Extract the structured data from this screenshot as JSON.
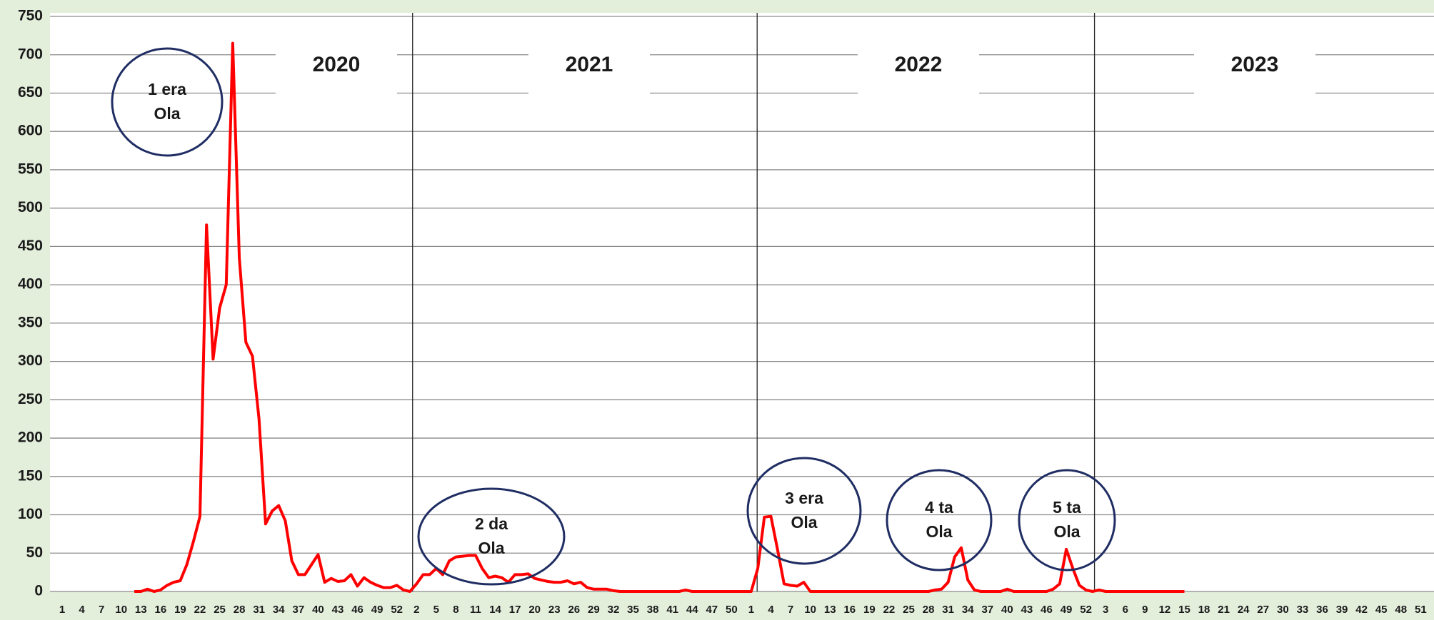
{
  "chart_data": {
    "type": "line",
    "color": "#ff0000",
    "grid": true,
    "ylim": [
      0,
      750
    ],
    "yticks": [
      0,
      50,
      100,
      150,
      200,
      250,
      300,
      350,
      400,
      450,
      500,
      550,
      600,
      650,
      700,
      750
    ],
    "year_labels": [
      "2020",
      "2021",
      "2022",
      "2023"
    ],
    "annotations": [
      {
        "lines": [
          "1 era",
          "Ola"
        ]
      },
      {
        "lines": [
          "2 da",
          "Ola"
        ]
      },
      {
        "lines": [
          "3 era",
          "Ola"
        ]
      },
      {
        "lines": [
          "4 ta",
          "Ola"
        ]
      },
      {
        "lines": [
          "5 ta",
          "Ola"
        ]
      }
    ],
    "categories": [
      "1",
      null,
      null,
      "4",
      null,
      null,
      "7",
      null,
      null,
      "10",
      null,
      null,
      "13",
      null,
      null,
      "16",
      null,
      null,
      "19",
      null,
      null,
      "22",
      null,
      null,
      "25",
      null,
      null,
      "28",
      null,
      null,
      "31",
      null,
      null,
      "34",
      null,
      null,
      "37",
      null,
      null,
      "40",
      null,
      null,
      "43",
      null,
      null,
      "46",
      null,
      null,
      "49",
      null,
      null,
      "52",
      null,
      null,
      "2",
      null,
      null,
      "5",
      null,
      null,
      "8",
      null,
      null,
      "11",
      null,
      null,
      "14",
      null,
      null,
      "17",
      null,
      null,
      "20",
      null,
      null,
      "23",
      null,
      null,
      "26",
      null,
      null,
      "29",
      null,
      null,
      "32",
      null,
      null,
      "35",
      null,
      null,
      "38",
      null,
      null,
      "41",
      null,
      null,
      "44",
      null,
      null,
      "47",
      null,
      null,
      "50",
      null,
      null,
      "1",
      null,
      null,
      "4",
      null,
      null,
      "7",
      null,
      null,
      "10",
      null,
      null,
      "13",
      null,
      null,
      "16",
      null,
      null,
      "19",
      null,
      null,
      "22",
      null,
      null,
      "25",
      null,
      null,
      "28",
      null,
      null,
      "31",
      null,
      null,
      "34",
      null,
      null,
      "37",
      null,
      null,
      "40",
      null,
      null,
      "43",
      null,
      null,
      "46",
      null,
      null,
      "49",
      null,
      null,
      "52",
      null,
      null,
      "3",
      null,
      null,
      "6",
      null,
      null,
      "9",
      null,
      null,
      "12",
      null,
      null,
      "15",
      null,
      null,
      "18",
      null,
      null,
      "21",
      null,
      null,
      "24",
      null,
      null,
      "27",
      null,
      null,
      "30",
      null,
      null,
      "33",
      null,
      null,
      "36",
      null,
      null,
      "39",
      null,
      null,
      "42",
      null,
      null,
      "45",
      null,
      null,
      "48",
      null,
      null,
      "51",
      null
    ],
    "values": [
      null,
      null,
      null,
      null,
      null,
      null,
      null,
      null,
      null,
      null,
      null,
      0,
      0,
      3,
      0,
      2,
      8,
      12,
      14,
      35,
      65,
      98,
      478,
      303,
      370,
      400,
      715,
      435,
      325,
      307,
      225,
      88,
      105,
      112,
      92,
      40,
      22,
      22,
      35,
      48,
      12,
      17,
      13,
      14,
      22,
      7,
      18,
      12,
      8,
      5,
      5,
      8,
      2,
      0,
      10,
      22,
      22,
      30,
      22,
      40,
      45,
      46,
      47,
      47,
      30,
      18,
      20,
      18,
      12,
      22,
      22,
      23,
      17,
      15,
      13,
      12,
      12,
      14,
      10,
      12,
      5,
      3,
      3,
      3,
      1,
      0,
      0,
      0,
      0,
      0,
      0,
      0,
      0,
      0,
      0,
      2,
      0,
      0,
      0,
      0,
      0,
      0,
      0,
      0,
      0,
      0,
      30,
      97,
      98,
      55,
      10,
      8,
      7,
      12,
      0,
      0,
      0,
      0,
      0,
      0,
      0,
      0,
      0,
      0,
      0,
      0,
      0,
      0,
      0,
      0,
      0,
      0,
      0,
      2,
      3,
      12,
      45,
      57,
      15,
      2,
      0,
      0,
      0,
      0,
      3,
      0,
      0,
      0,
      0,
      0,
      0,
      3,
      10,
      55,
      30,
      8,
      2,
      0,
      2,
      0,
      0,
      0,
      0,
      0,
      0,
      0,
      0,
      0,
      0,
      0,
      0,
      0,
      null,
      null,
      null,
      null,
      null,
      null,
      null,
      null,
      null,
      null,
      null,
      null,
      null,
      null,
      null,
      null,
      null,
      null,
      null,
      null,
      null,
      null,
      null,
      null,
      null,
      null,
      null,
      null,
      null,
      null,
      null,
      null,
      null,
      null,
      null,
      null,
      null
    ]
  }
}
